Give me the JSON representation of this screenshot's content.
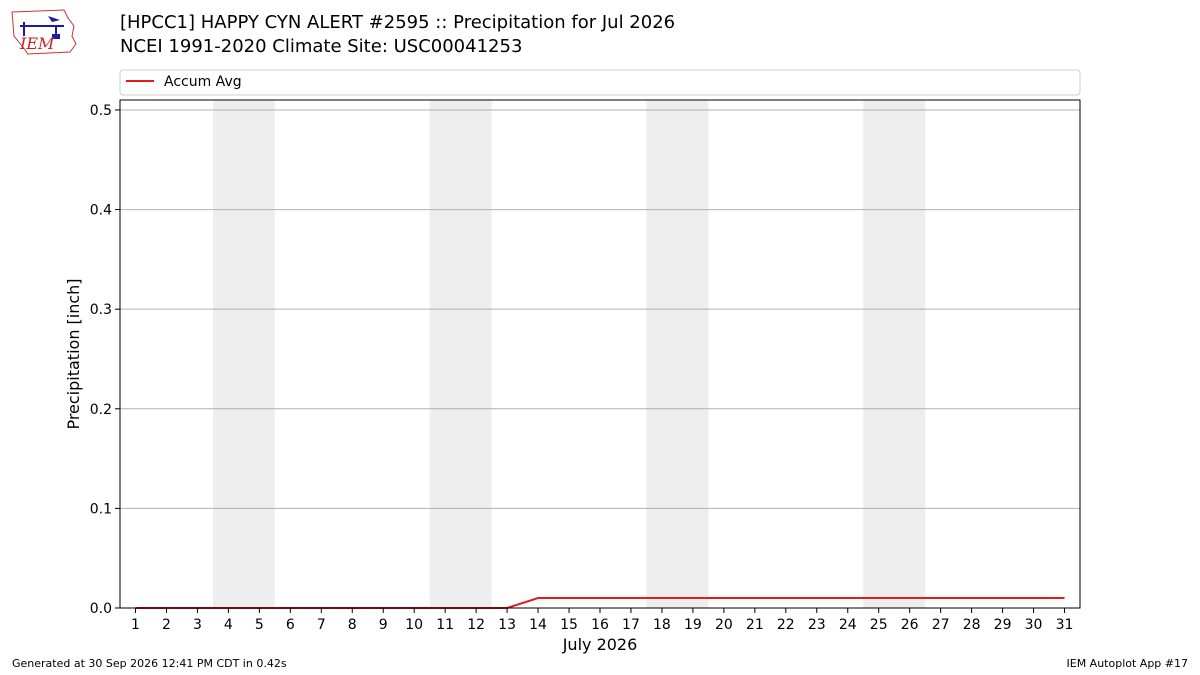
{
  "header": {
    "logo_text": "IEM",
    "title_line1": "[HPCC1] HAPPY CYN ALERT #2595 :: Precipitation for Jul 2026",
    "title_line2": "NCEI 1991-2020 Climate Site: USC00041253"
  },
  "footer": {
    "generated": "Generated at 30 Sep 2026 12:41 PM CDT in 0.42s",
    "app": "IEM Autoplot App #17"
  },
  "colors": {
    "accum_line": "#e41a1c",
    "weekend_band": "#eeeeee",
    "grid": "#b0b0b0"
  },
  "chart_data": {
    "type": "line",
    "xlabel": "July 2026",
    "ylabel": "Precipitation [inch]",
    "x": [
      1,
      2,
      3,
      4,
      5,
      6,
      7,
      8,
      9,
      10,
      11,
      12,
      13,
      14,
      15,
      16,
      17,
      18,
      19,
      20,
      21,
      22,
      23,
      24,
      25,
      26,
      27,
      28,
      29,
      30,
      31
    ],
    "x_tick_labels": [
      "1",
      "2",
      "3",
      "4",
      "5",
      "6",
      "7",
      "8",
      "9",
      "10",
      "11",
      "12",
      "13",
      "14",
      "15",
      "16",
      "17",
      "18",
      "19",
      "20",
      "21",
      "22",
      "23",
      "24",
      "25",
      "26",
      "27",
      "28",
      "29",
      "30",
      "31"
    ],
    "y_ticks": [
      "0.0",
      "0.1",
      "0.2",
      "0.3",
      "0.4",
      "0.5"
    ],
    "ylim": [
      0,
      0.51
    ],
    "grid": true,
    "legend_placement": "top",
    "weekend_days": [
      [
        4,
        5
      ],
      [
        11,
        12
      ],
      [
        18,
        19
      ],
      [
        25,
        26
      ]
    ],
    "series": [
      {
        "name": "Accum Avg",
        "color": "#e41a1c",
        "values": [
          0,
          0,
          0,
          0,
          0,
          0,
          0,
          0,
          0,
          0,
          0,
          0,
          0,
          0.01,
          0.01,
          0.01,
          0.01,
          0.01,
          0.01,
          0.01,
          0.01,
          0.01,
          0.01,
          0.01,
          0.01,
          0.01,
          0.01,
          0.01,
          0.01,
          0.01,
          0.01
        ]
      }
    ]
  }
}
